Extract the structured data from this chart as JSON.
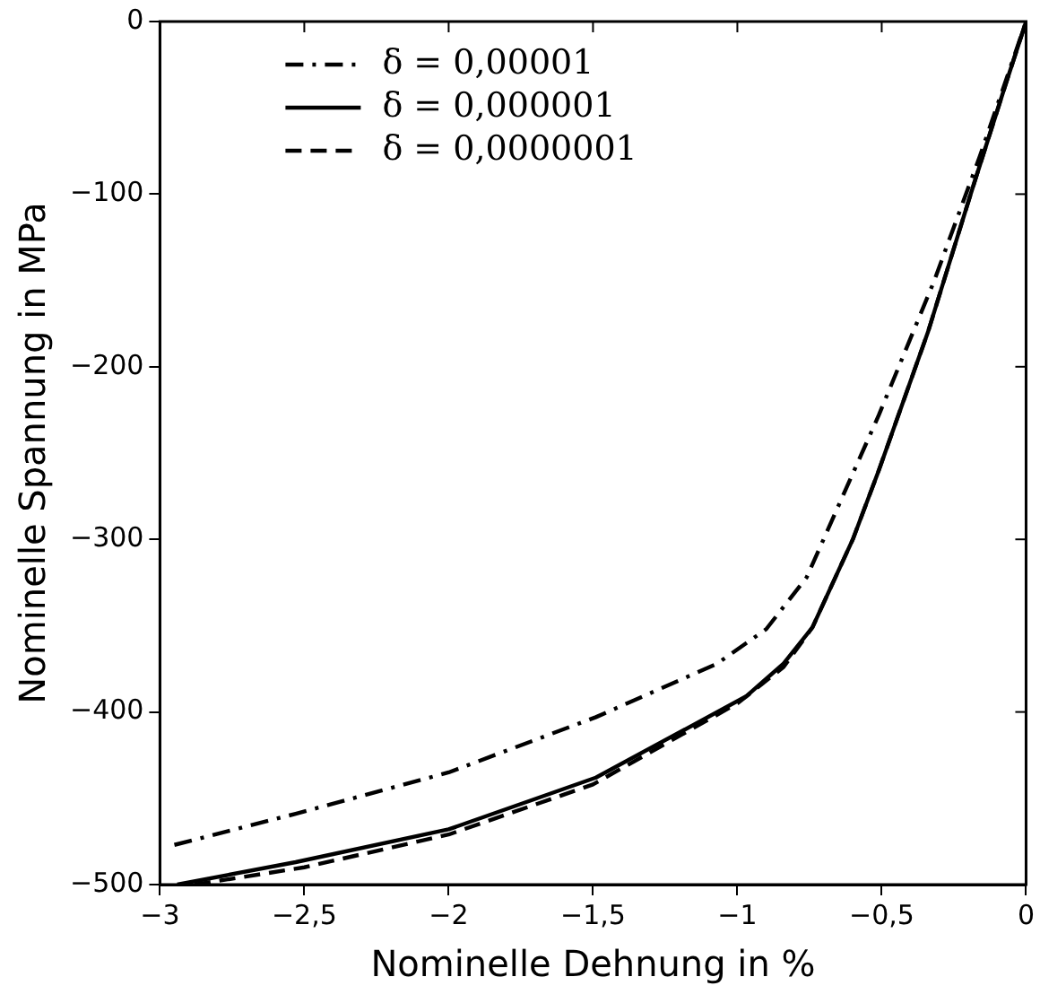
{
  "chart_data": {
    "type": "line",
    "xlabel": "Nominelle Dehnung in %",
    "ylabel": "Nominelle Spannung in MPa",
    "xlim": [
      -3,
      0
    ],
    "ylim": [
      -500,
      0
    ],
    "xticks": [
      {
        "value": -3,
        "label": "−3"
      },
      {
        "value": -2.5,
        "label": "−2,5"
      },
      {
        "value": -2,
        "label": "−2"
      },
      {
        "value": -1.5,
        "label": "−1,5"
      },
      {
        "value": -1,
        "label": "−1"
      },
      {
        "value": -0.5,
        "label": "−0,5"
      },
      0
    ],
    "yticks": [
      {
        "value": -500,
        "label": "−500"
      },
      {
        "value": -400,
        "label": "−400"
      },
      {
        "value": -300,
        "label": "−300"
      },
      {
        "value": -200,
        "label": "−200"
      },
      {
        "value": -100,
        "label": "−100"
      },
      0
    ],
    "grid": false,
    "legend": "top left",
    "marker": "none",
    "series": [
      {
        "name": "δ = 0,00001",
        "color": "#000000",
        "line_style": "dashdot",
        "x": [
          -2.95,
          -2.53,
          -2.0,
          -1.49,
          -1.07,
          -0.9,
          -0.76,
          -0.51,
          -0.32,
          -0.16,
          0
        ],
        "values": [
          -477,
          -459,
          -435,
          -403,
          -372,
          -352,
          -322,
          -228,
          -151,
          -78,
          0
        ]
      },
      {
        "name": "δ = 0,000001",
        "color": "#000000",
        "line_style": "solid",
        "x": [
          -2.94,
          -2.53,
          -2.0,
          -1.49,
          -0.97,
          -0.84,
          -0.74,
          -0.6,
          -0.51,
          -0.34,
          -0.19,
          -0.07,
          0
        ],
        "values": [
          -500,
          -487,
          -468,
          -438,
          -391,
          -372,
          -351,
          -300,
          -260,
          -180,
          -99,
          -36,
          0
        ]
      },
      {
        "name": "δ = 0,0000001",
        "color": "#000000",
        "line_style": "dashed",
        "x": [
          -2.88,
          -2.5,
          -2.0,
          -1.5,
          -1.0,
          -0.84,
          -0.74,
          -0.6,
          -0.51,
          -0.34,
          -0.19,
          -0.07,
          0
        ],
        "values": [
          -500,
          -490,
          -471,
          -442,
          -395,
          -374,
          -351,
          -300,
          -260,
          -180,
          -99,
          -36,
          0
        ]
      }
    ]
  }
}
